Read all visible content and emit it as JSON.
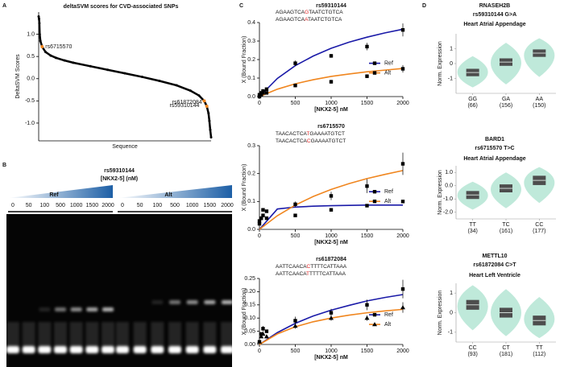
{
  "panel_labels": [
    "A",
    "B",
    "C",
    "D"
  ],
  "gel": {
    "title": "rs59310144",
    "subtitle": "[NKX2-5] (nM)",
    "wedge_color": "#1d5fa6",
    "groups": [
      {
        "name": "Ref",
        "color": "#3a6fd0",
        "concentrations": [
          "0",
          "50",
          "100",
          "500",
          "1000",
          "1500",
          "2000"
        ]
      },
      {
        "name": "Alt",
        "color": "#f0861f",
        "concentrations": [
          "0",
          "50",
          "100",
          "500",
          "1000",
          "1500",
          "2000"
        ]
      }
    ]
  },
  "chart_data": [
    {
      "type": "line",
      "title": "deltaSVM scores for CVD-associated SNPs",
      "y_label": "DeltaSVM Scores",
      "x_label": "Sequence",
      "color": "#000000",
      "highlight_color": "#f0861f",
      "xlim": [
        0,
        100
      ],
      "ylim": [
        -1.4,
        1.5
      ],
      "yticks": [
        {
          "value": 1,
          "label": "1.0"
        },
        {
          "value": 0.5,
          "label": "0.5"
        },
        {
          "value": 0,
          "label": "0.0"
        },
        {
          "value": -0.5,
          "label": "-0.5"
        },
        {
          "value": -1,
          "label": "-1.0"
        }
      ],
      "x": [
        0,
        0.2,
        0.4,
        0.6,
        1,
        2,
        4,
        7,
        10,
        15,
        20,
        30,
        40,
        50,
        60,
        70,
        80,
        88,
        93,
        96,
        97.5,
        98.5,
        99,
        99.5,
        100
      ],
      "values": [
        1.4,
        1.35,
        1.25,
        1.0,
        0.85,
        0.72,
        0.6,
        0.52,
        0.47,
        0.41,
        0.36,
        0.28,
        0.2,
        0.12,
        0.04,
        -0.05,
        -0.15,
        -0.27,
        -0.38,
        -0.5,
        -0.62,
        -0.78,
        -0.95,
        -1.15,
        -1.32
      ],
      "highlights": [
        {
          "label": "rs6715570",
          "x": 2,
          "y": 0.72
        },
        {
          "label": "rs59310144",
          "x": 96,
          "y": -0.5
        },
        {
          "label": "rs61872084",
          "x": 97.5,
          "y": -0.62
        }
      ]
    },
    {
      "type": "scatter",
      "title": "rs59310144",
      "x_label": "[NKX2-5] nM",
      "y_label": "X (Bound Fraction)",
      "sequences": [
        {
          "before": "AGAAGTCA",
          "variant": "G",
          "after": "TAATCTGTCA"
        },
        {
          "before": "AGAAGTCA",
          "variant": "A",
          "after": "TAATCTGTCA"
        }
      ],
      "variant_color": "#e02020",
      "xlim": [
        0,
        2000
      ],
      "xticks": [
        0,
        500,
        1000,
        1500,
        2000
      ],
      "ylim": [
        0,
        0.4
      ],
      "yticks": [
        {
          "value": 0,
          "label": "0.0"
        },
        {
          "value": 0.1,
          "label": "0.1"
        },
        {
          "value": 0.2,
          "label": "0.2"
        },
        {
          "value": 0.3,
          "label": "0.3"
        },
        {
          "value": 0.4,
          "label": "0.4"
        }
      ],
      "x": [
        0,
        25,
        50,
        100,
        500,
        1000,
        1500,
        2000
      ],
      "fit_x": [
        0,
        250,
        500,
        750,
        1000,
        1250,
        1500,
        1750,
        2000
      ],
      "series": [
        {
          "name": "Ref",
          "color": "#1a1aa8",
          "marker": "square",
          "values": [
            0.01,
            0.02,
            0.03,
            0.04,
            0.18,
            0.22,
            0.27,
            0.36
          ],
          "errors": [
            0.005,
            0.005,
            0.01,
            0.01,
            0.015,
            0.01,
            0.02,
            0.035
          ],
          "fit": [
            0,
            0.098,
            0.167,
            0.219,
            0.261,
            0.294,
            0.321,
            0.344,
            0.364
          ]
        },
        {
          "name": "Alt",
          "color": "#f0861f",
          "marker": "square",
          "values": [
            0.0,
            0.01,
            0.02,
            0.02,
            0.06,
            0.08,
            0.11,
            0.15
          ],
          "errors": [
            0.005,
            0.005,
            0.005,
            0.005,
            0.01,
            0.01,
            0.01,
            0.02
          ],
          "fit": [
            0,
            0.04,
            0.069,
            0.091,
            0.109,
            0.122,
            0.134,
            0.143,
            0.152
          ]
        }
      ]
    },
    {
      "type": "scatter",
      "title": "rs6715570",
      "x_label": "[NKX2-5] nM",
      "y_label": "X (Bound Fraction)",
      "sequences": [
        {
          "before": "TAACACTCA",
          "variant": "T",
          "after": "GAAAATGTCT"
        },
        {
          "before": "TAACACTCA",
          "variant": "C",
          "after": "GAAAATGTCT"
        }
      ],
      "variant_color": "#e02020",
      "xlim": [
        0,
        2000
      ],
      "xticks": [
        0,
        500,
        1000,
        1500,
        2000
      ],
      "ylim": [
        0,
        0.3
      ],
      "yticks": [
        {
          "value": 0,
          "label": "0.0"
        },
        {
          "value": 0.1,
          "label": "0.1"
        },
        {
          "value": 0.2,
          "label": "0.2"
        },
        {
          "value": 0.3,
          "label": "0.3"
        }
      ],
      "x": [
        0,
        25,
        50,
        100,
        500,
        1000,
        1500,
        2000
      ],
      "fit_x": [
        0,
        250,
        500,
        750,
        1000,
        1250,
        1500,
        1750,
        2000
      ],
      "series": [
        {
          "name": "Ref",
          "color": "#1a1aa8",
          "marker": "square",
          "values": [
            0.03,
            0.04,
            0.07,
            0.065,
            0.05,
            0.07,
            0.085,
            0.1
          ],
          "errors": [
            0.005,
            0.005,
            0.005,
            0.005,
            0.005,
            0.005,
            0.005,
            0.005
          ],
          "fit": [
            0,
            0.073,
            0.08,
            0.083,
            0.085,
            0.086,
            0.087,
            0.087,
            0.087
          ]
        },
        {
          "name": "Alt",
          "color": "#f0861f",
          "marker": "square",
          "values": [
            0.02,
            0.04,
            0.05,
            0.04,
            0.09,
            0.12,
            0.155,
            0.235
          ],
          "errors": [
            0.005,
            0.005,
            0.005,
            0.005,
            0.01,
            0.015,
            0.025,
            0.04
          ],
          "fit": [
            0,
            0.049,
            0.087,
            0.118,
            0.143,
            0.164,
            0.182,
            0.197,
            0.211
          ]
        }
      ]
    },
    {
      "type": "scatter",
      "title": "rs61872084",
      "x_label": "[NKX2-5] nM",
      "y_label": "X (Bound Fraction)",
      "sequences": [
        {
          "before": "AATTCAACA",
          "variant": "C",
          "after": "TTTTCATTAAA"
        },
        {
          "before": "AATTCAACA",
          "variant": "T",
          "after": "TTTTCATTAAA"
        }
      ],
      "variant_color": "#e02020",
      "xlim": [
        0,
        2000
      ],
      "xticks": [
        0,
        500,
        1000,
        1500,
        2000
      ],
      "ylim": [
        0,
        0.25
      ],
      "yticks": [
        {
          "value": 0,
          "label": "0.00"
        },
        {
          "value": 0.05,
          "label": "0.05"
        },
        {
          "value": 0.1,
          "label": "0.10"
        },
        {
          "value": 0.15,
          "label": "0.15"
        },
        {
          "value": 0.2,
          "label": "0.20"
        },
        {
          "value": 0.25,
          "label": "0.25"
        }
      ],
      "x": [
        0,
        25,
        50,
        100,
        500,
        1000,
        1500,
        2000
      ],
      "fit_x": [
        0,
        250,
        500,
        750,
        1000,
        1250,
        1500,
        1750,
        2000
      ],
      "series": [
        {
          "name": "Ref",
          "color": "#1a1aa8",
          "marker": "square",
          "values": [
            0.01,
            0.04,
            0.06,
            0.05,
            0.09,
            0.12,
            0.15,
            0.21
          ],
          "errors": [
            0.005,
            0.005,
            0.01,
            0.005,
            0.015,
            0.015,
            0.02,
            0.035
          ],
          "fit": [
            0,
            0.045,
            0.08,
            0.108,
            0.13,
            0.148,
            0.165,
            0.178,
            0.189
          ]
        },
        {
          "name": "Alt",
          "color": "#f0861f",
          "marker": "triangle",
          "values": [
            0.01,
            0.03,
            0.04,
            0.03,
            0.07,
            0.1,
            0.1,
            0.14
          ],
          "errors": [
            0.005,
            0.005,
            0.005,
            0.005,
            0.01,
            0.01,
            0.01,
            0.02
          ],
          "fit": [
            0,
            0.04,
            0.067,
            0.086,
            0.1,
            0.111,
            0.12,
            0.127,
            0.133
          ]
        }
      ]
    },
    {
      "type": "violin",
      "gene": "RNASEH2B",
      "variant": "rs59310144 G>A",
      "tissue": "Heart Atrial Appendage",
      "y_label": "Norm. Expression",
      "color": "#bfe9da",
      "box_color": "#4d4d4d",
      "ylim": [
        -2,
        2
      ],
      "yticks": [
        -1,
        0,
        1
      ],
      "categories": [
        "GG",
        "GA",
        "AA"
      ],
      "sample_labels": [
        "(66)",
        "(156)",
        "(150)"
      ],
      "min": [
        -1.6,
        -1.4,
        -0.9
      ],
      "q1": [
        -0.85,
        -0.15,
        0.45
      ],
      "median": [
        -0.6,
        0.1,
        0.7
      ],
      "q3": [
        -0.35,
        0.35,
        0.95
      ],
      "max": [
        0.5,
        1.4,
        1.7
      ]
    },
    {
      "type": "violin",
      "gene": "BARD1",
      "variant": "rs6715570 T>C",
      "tissue": "Heart Atrial Appendage",
      "y_label": "Norm. Expression",
      "color": "#bfe9da",
      "box_color": "#4d4d4d",
      "ylim": [
        -2.5,
        1.5
      ],
      "yticks": [
        {
          "value": 1,
          "label": "1.0"
        },
        {
          "value": 0,
          "label": "0.0"
        },
        {
          "value": -1,
          "label": "-1.0"
        },
        {
          "value": -2,
          "label": "-2.0"
        }
      ],
      "categories": [
        "TT",
        "TC",
        "CC"
      ],
      "sample_labels": [
        "(34)",
        "(161)",
        "(177)"
      ],
      "min": [
        -1.8,
        -1.7,
        -1.3
      ],
      "q1": [
        -1.0,
        -0.5,
        0.05
      ],
      "median": [
        -0.7,
        -0.2,
        0.4
      ],
      "q3": [
        -0.4,
        0.1,
        0.75
      ],
      "max": [
        0.3,
        1.0,
        1.4
      ]
    },
    {
      "type": "violin",
      "gene": "METTL10",
      "variant": "rs61872084 C>T",
      "tissue": "Heart Left Ventricle",
      "y_label": "Norm. Expression",
      "color": "#bfe9da",
      "box_color": "#4d4d4d",
      "ylim": [
        -1.5,
        1.5
      ],
      "yticks": [
        1,
        0,
        -1
      ],
      "categories": [
        "CC",
        "CT",
        "TT"
      ],
      "sample_labels": [
        "(93)",
        "(181)",
        "(112)"
      ],
      "min": [
        -0.9,
        -1.2,
        -1.3
      ],
      "q1": [
        0.15,
        -0.25,
        -0.65
      ],
      "median": [
        0.4,
        0.0,
        -0.4
      ],
      "q3": [
        0.65,
        0.25,
        -0.15
      ],
      "max": [
        1.4,
        1.2,
        0.8
      ]
    }
  ]
}
